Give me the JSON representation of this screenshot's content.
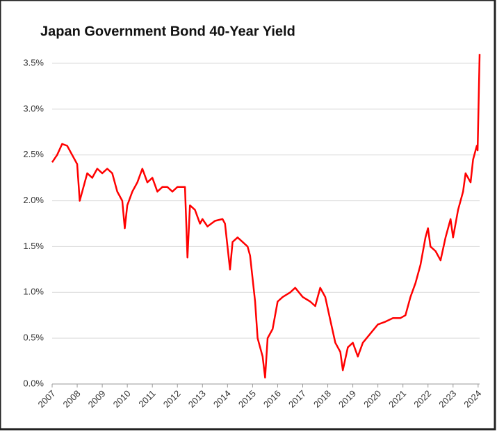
{
  "chart_data": {
    "type": "line",
    "title": "Japan Government Bond 40-Year Yield",
    "color": "#ff0000",
    "grid": true,
    "x": [
      2007.0,
      2007.2,
      2007.4,
      2007.6,
      2007.8,
      2008.0,
      2008.1,
      2008.2,
      2008.4,
      2008.6,
      2008.8,
      2009.0,
      2009.2,
      2009.4,
      2009.6,
      2009.8,
      2009.9,
      2010.0,
      2010.2,
      2010.4,
      2010.6,
      2010.8,
      2011.0,
      2011.2,
      2011.4,
      2011.6,
      2011.8,
      2012.0,
      2012.2,
      2012.3,
      2012.4,
      2012.5,
      2012.7,
      2012.9,
      2013.0,
      2013.2,
      2013.5,
      2013.8,
      2013.9,
      2014.0,
      2014.1,
      2014.2,
      2014.4,
      2014.6,
      2014.8,
      2014.9,
      2015.1,
      2015.2,
      2015.4,
      2015.5,
      2015.6,
      2015.8,
      2016.0,
      2016.2,
      2016.5,
      2016.7,
      2017.0,
      2017.3,
      2017.5,
      2017.7,
      2017.9,
      2018.1,
      2018.3,
      2018.5,
      2018.6,
      2018.8,
      2019.0,
      2019.2,
      2019.4,
      2019.7,
      2020.0,
      2020.3,
      2020.6,
      2020.9,
      2021.1,
      2021.3,
      2021.5,
      2021.7,
      2021.9,
      2022.0,
      2022.1,
      2022.3,
      2022.5,
      2022.7,
      2022.9,
      2023.0,
      2023.2,
      2023.4,
      2023.5,
      2023.7,
      2023.8,
      2023.9,
      2023.95,
      2023.98,
      2024.0,
      2024.03,
      2024.06
    ],
    "values": [
      2.42,
      2.5,
      2.62,
      2.6,
      2.5,
      2.4,
      2.0,
      2.1,
      2.3,
      2.25,
      2.35,
      2.3,
      2.35,
      2.3,
      2.1,
      2.0,
      1.7,
      1.95,
      2.1,
      2.2,
      2.35,
      2.2,
      2.25,
      2.1,
      2.15,
      2.15,
      2.1,
      2.15,
      2.15,
      2.15,
      1.38,
      1.95,
      1.9,
      1.75,
      1.8,
      1.72,
      1.78,
      1.8,
      1.75,
      1.5,
      1.25,
      1.55,
      1.6,
      1.55,
      1.5,
      1.4,
      0.9,
      0.5,
      0.3,
      0.07,
      0.5,
      0.6,
      0.9,
      0.95,
      1.0,
      1.05,
      0.95,
      0.9,
      0.85,
      1.05,
      0.95,
      0.7,
      0.45,
      0.35,
      0.15,
      0.4,
      0.45,
      0.3,
      0.45,
      0.55,
      0.65,
      0.68,
      0.72,
      0.72,
      0.75,
      0.95,
      1.1,
      1.3,
      1.6,
      1.7,
      1.5,
      1.45,
      1.35,
      1.6,
      1.8,
      1.6,
      1.9,
      2.1,
      2.3,
      2.2,
      2.45,
      2.55,
      2.6,
      2.55,
      2.8,
      3.2,
      3.6
    ],
    "xlim": [
      2007,
      2024.06
    ],
    "xticks": [
      2007,
      2008,
      2009,
      2010,
      2011,
      2012,
      2013,
      2014,
      2015,
      2016,
      2017,
      2018,
      2019,
      2020,
      2021,
      2022,
      2023,
      2024
    ],
    "ylim": [
      0,
      3.5
    ],
    "yticks": [
      {
        "value": 0,
        "label": "0.0%"
      },
      {
        "value": 0.5,
        "label": "0.5%"
      },
      {
        "value": 1,
        "label": "1.0%"
      },
      {
        "value": 1.5,
        "label": "1.5%"
      },
      {
        "value": 2,
        "label": "2.0%"
      },
      {
        "value": 2.5,
        "label": "2.5%"
      },
      {
        "value": 3,
        "label": "3.0%"
      },
      {
        "value": 3.5,
        "label": "3.5%"
      }
    ]
  }
}
